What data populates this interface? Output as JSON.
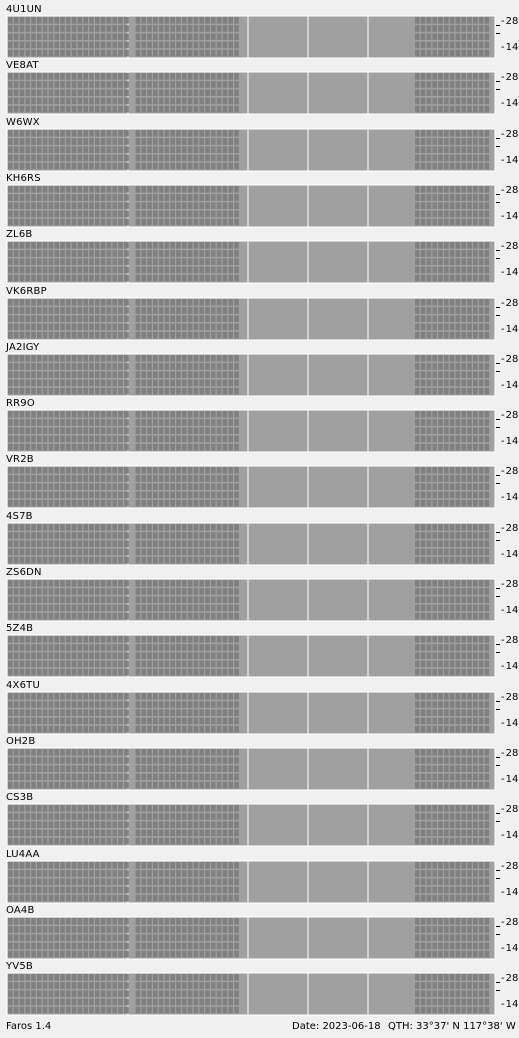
{
  "app": {
    "version": "Faros 1.4"
  },
  "status": {
    "date": "Date: 2023-06-18",
    "qth": "QTH: 33°37' N  117°38' W"
  },
  "axis": {
    "top_label": "28",
    "bottom_label": "14"
  },
  "colors": {
    "cyan": "#7fffff",
    "green": "#7fff7f",
    "blue": "#7fa7ff",
    "lightgray": "#a9a9a9",
    "cell": "#808080",
    "panel_bg": "#a0a0a0"
  },
  "beacons": [
    {
      "call": "4U1UN",
      "left": [
        "..c.......................................................",
        "c.c..g..c.......g.............................",
        "g.gccg.gc.g.g..g.c....c.........",
        "c.cgcgg.gggcccgg..ggg.ccg..cb.c.b....",
        "..c.cg.c..c.....c..b..c..b..cc.b..g..b..."
      ],
      "right": [
        "c.g.....",
        "....gg..",
        "c.c.gggg",
        "c.cgcggg",
        "..g..c.."
      ]
    },
    {
      "call": "VE8AT",
      "left": [
        "........................................",
        "c.......................................",
        "..c.cc.c..c...c..bcc..cc..cccc.c...b...",
        "..cc.ccc...c...c.cc..ccc..c.....",
        "........................................"
      ],
      "right": [
        "........",
        "......c.",
        "..c.c.c.",
        "....c...",
        "........"
      ]
    },
    {
      "call": "W6WX",
      "left": [],
      "right": []
    },
    {
      "call": "KH6RS",
      "left": [
        "......cbb...b...............",
        "..cc.ccc.cc.cc.c...c......",
        "c.gcgc.ccccgccc..cg.cgcgc.cc..cccc",
        "..cgcc.ccgc.ccgcg.cc..cc.cg.c.c..c.c",
        "..c...cc.c..cg..c..ccg..c.g..c..cc..c.g"
      ],
      "right": [
        "cgc.....",
        "c.g.....",
        "c.c.cgcg",
        "..c.cgc.",
        "..c.cgcc"
      ]
    },
    {
      "call": "ZL6B",
      "left": [
        "...cccccc...",
        "...cccc.cc.c",
        "..ccc..cc.cc.",
        "...cc.c...c.cccc.b..",
        "..c...c..cgcg.c........"
      ],
      "right": [
        "........",
        "..c.....",
        "..c.....",
        "........",
        "........"
      ]
    },
    {
      "call": "VK6RBP",
      "left": [
        "........................................",
        "..b...........c.c......",
        "..........................c.c....",
        "...................cccccccc.c..",
        ".......................ccc..c..cc..l."
      ],
      "right": []
    },
    {
      "call": "JA2IGY",
      "left": [
        "........................................",
        "........................................",
        "........................................",
        "..............cc..cccc..c...cc.cc.ccc..",
        ".......................c.c......c.c..c.ccc"
      ],
      "right": [
        "........",
        "........",
        "........",
        "..c.....",
        "........"
      ]
    },
    {
      "call": "RR9O",
      "left": [
        "........................................",
        "........................................",
        "........l.............",
        "...........b..........",
        "........................................"
      ],
      "right": []
    },
    {
      "call": "VR2B",
      "left": [
        "........................................",
        "........................................",
        "......................cc..",
        "....................c.ccc.......c..c..",
        "...................c..c........."
      ],
      "right": []
    },
    {
      "call": "4S7B",
      "left": [
        "...l....",
        "",
        "",
        "",
        ""
      ],
      "right": []
    },
    {
      "call": "ZS6DN",
      "left": [
        "........",
        ".........c..",
        "",
        "",
        "..............................l..."
      ],
      "right": []
    },
    {
      "call": "5Z4B",
      "left": [],
      "right": []
    },
    {
      "call": "4X6TU",
      "left": [
        "......................l...",
        "",
        "",
        "",
        ""
      ],
      "right": []
    },
    {
      "call": "OH2B",
      "left": [],
      "right": []
    },
    {
      "call": "CS3B",
      "left": [
        "...c......c.......c.......",
        "..cc.c.ccc...c.cc..cc.",
        "..cc.cccc..cgcc..c.cgc.ccc",
        "..g.c...c.gc..cg.c..c..cc.c.bc",
        "..b...ccgc...c..c...c..b.cc..."
      ],
      "right": [
        "........",
        "..b.....",
        "c.ccc.cc",
        "...c.c.c",
        "........"
      ]
    },
    {
      "call": "LU4AA",
      "left": [
        "..........c..",
        "........gggg.",
        "..c.....gggg.",
        "c.cc.c.ggggg",
        ".....c.gggg."
      ],
      "right": [
        "....c.cc",
        "...cccc.",
        "...c..c.",
        "...cc...",
        "........b"
      ]
    },
    {
      "call": "OA4B",
      "left": [
        "..........c.c..........",
        "............cccc.cc.cc..",
        "..b.....ccccccccccc..cccc.c.c....b.",
        "..c...cc.c.cccc...cc..c.c..c..c.c",
        "..c...c.cccccccc.c..c.c..c.l..."
      ],
      "right": [
        "c..c..b.",
        "........",
        "...c.b..",
        "......c.",
        "........"
      ]
    },
    {
      "call": "YV5B",
      "left": [],
      "right": []
    }
  ]
}
